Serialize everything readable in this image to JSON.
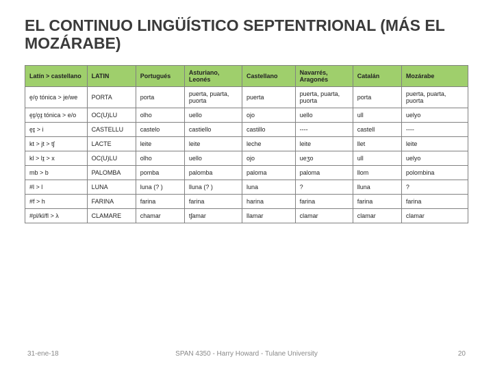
{
  "title": "EL CONTINUO LINGÜÍSTICO SEPTENTRIONAL (MÁS EL MOZÁRABE)",
  "columns": [
    "Latín > castellano",
    "LATIN",
    "Portugués",
    "Asturiano, Leonés",
    "Castellano",
    "Navarrés, Aragonés",
    "Catalán",
    "Mozárabe"
  ],
  "rows": [
    [
      "e̝/o̝ tónica > je/we",
      "PORTA",
      "porta",
      "puerta, puarta, puorta",
      "puerta",
      "puerta, puarta, puorta",
      "porta",
      "puerta, puarta, puorta"
    ],
    [
      "e̝ɪ̯/o̝ɪ̯ tónica > e/o",
      "OC(U)LU",
      "olho",
      "uello",
      "ojo",
      "uello",
      "ull",
      "uelyo"
    ],
    [
      "e̝ɪ̯ > i",
      "CASTELLU",
      "castelo",
      "castiello",
      "castillo",
      "----",
      "castell",
      "----"
    ],
    [
      "kt > jt > tʃ",
      "LACTE",
      "leite",
      "leite",
      "leche",
      "leite",
      "llet",
      "leite"
    ],
    [
      "kl > lɪ̯ > x",
      "OC(U)LU",
      "olho",
      "uello",
      "ojo",
      "ueʒo",
      "ull",
      "uelyo"
    ],
    [
      "mb > b",
      "PALOMBA",
      "pomba",
      "palomba",
      "paloma",
      "paloma",
      "llom",
      "polombina"
    ],
    [
      "#l > l",
      "LUNA",
      "luna (? )",
      "lluna (? )",
      "luna",
      "?",
      "lluna",
      "?"
    ],
    [
      "#f > h",
      "FARINA",
      "farina",
      "farina",
      "harina",
      "farina",
      "farina",
      "farina"
    ],
    [
      "#pl/kl/fl > λ",
      "CLAMARE",
      "chamar",
      "tʃamar",
      "llamar",
      "clamar",
      "clamar",
      "clamar"
    ]
  ],
  "footer": {
    "date": "31-ene-18",
    "center": "SPAN 4350 - Harry Howard - Tulane University",
    "page": "20"
  },
  "colors": {
    "header_bg": "#9fcf6c",
    "border": "#808080",
    "title_text": "#3b3b3b"
  }
}
